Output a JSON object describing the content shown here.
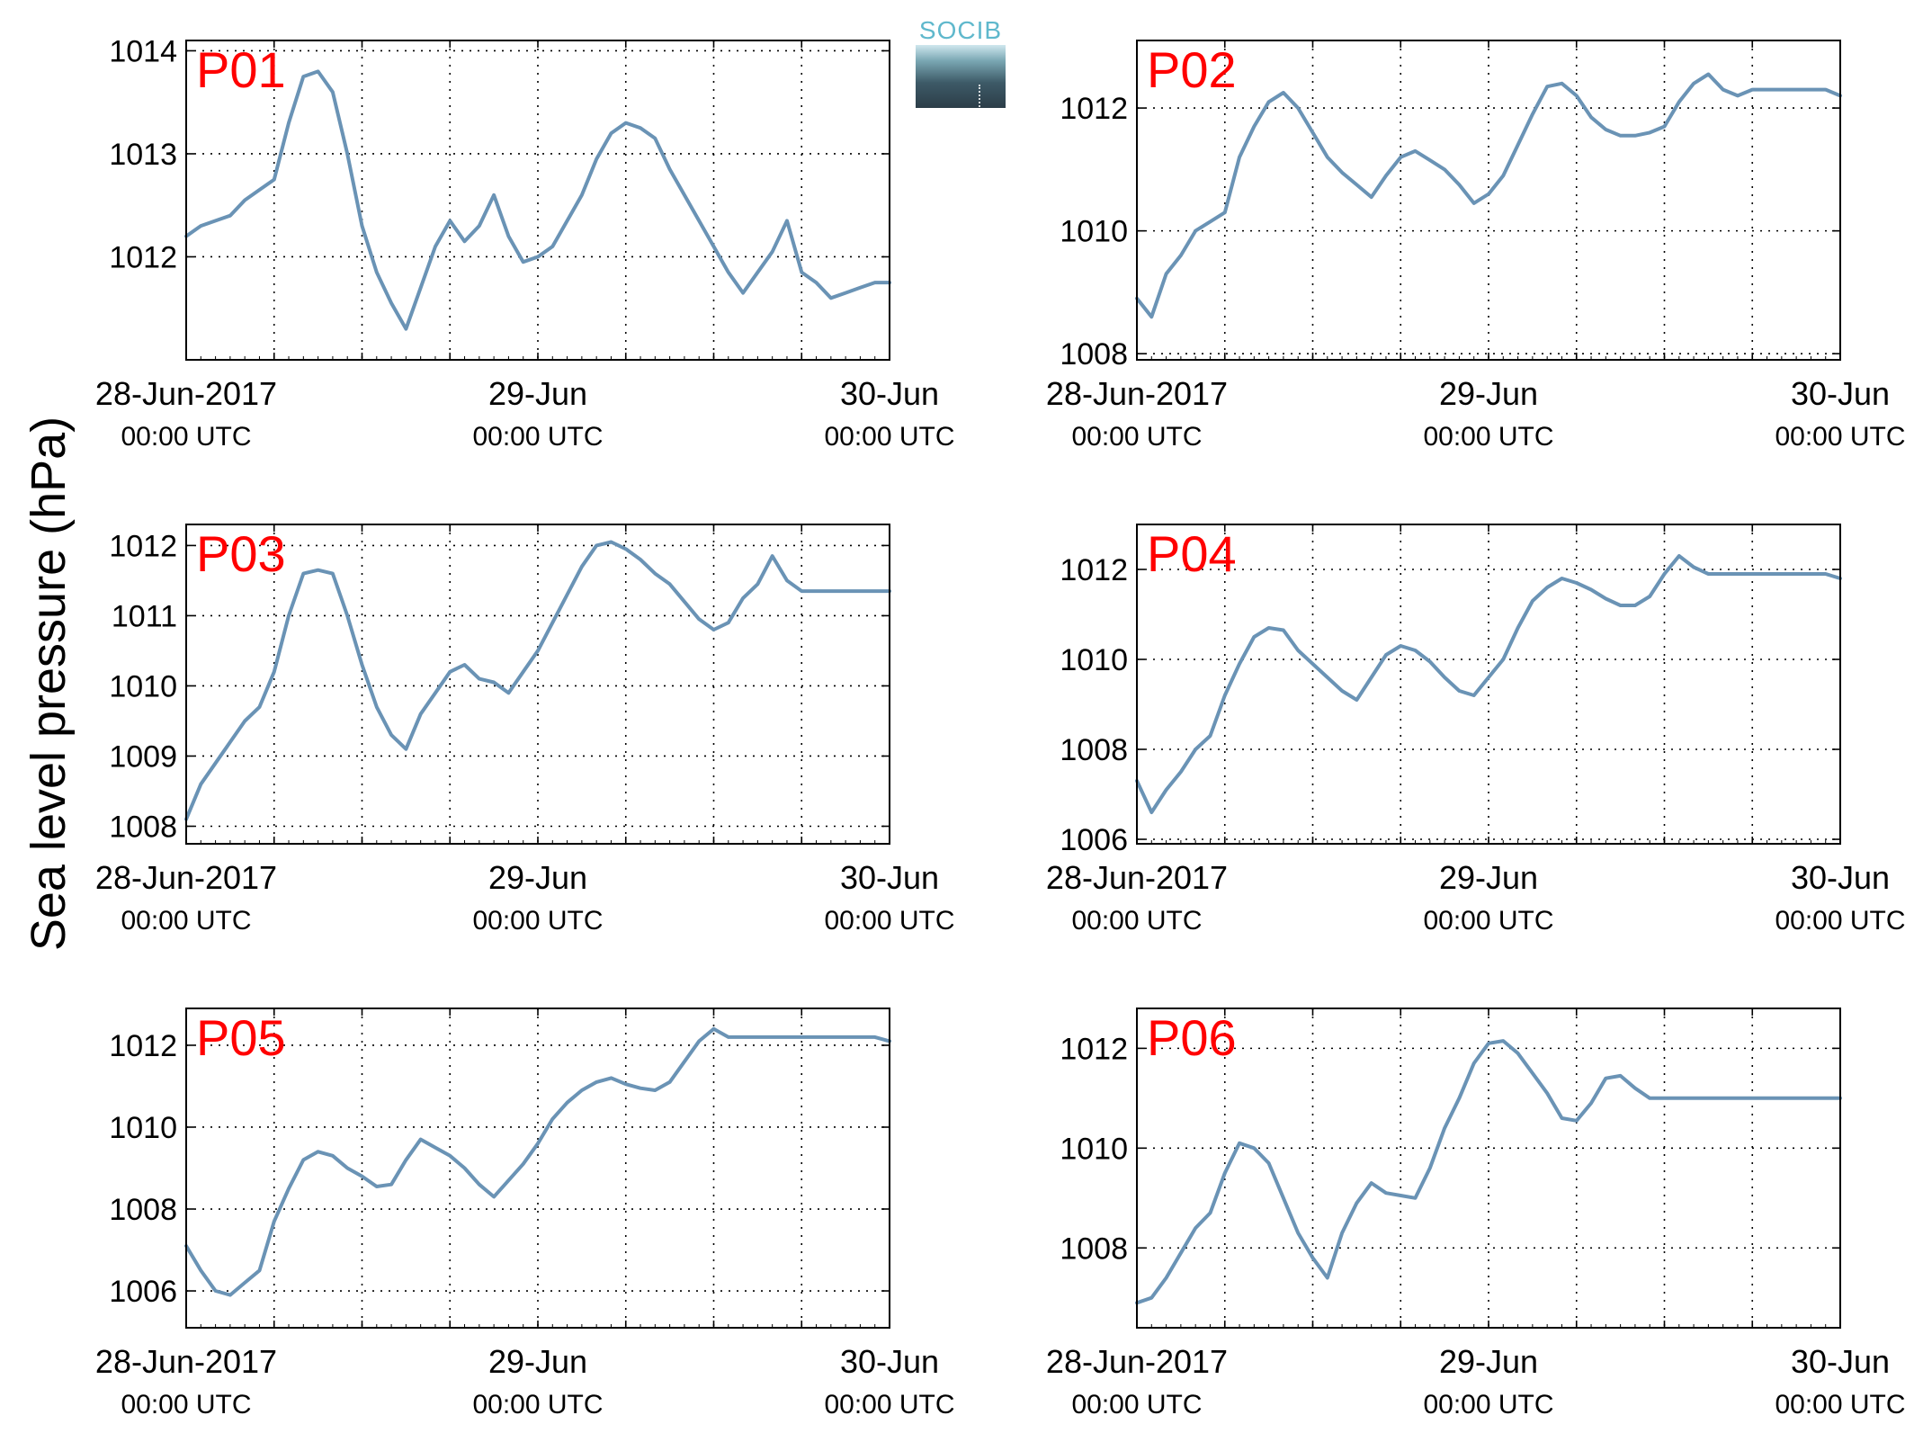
{
  "figure": {
    "ylabel": "Sea level pressure (hPa)",
    "logo_text": "SOCIB",
    "line_color": "#6a93b5",
    "label_color": "#ff0000"
  },
  "chart_data": [
    {
      "type": "line",
      "title": "P01",
      "ylim": [
        1011.0,
        1014.1
      ],
      "yticks": [
        1012,
        1013,
        1014
      ],
      "xlim": [
        0,
        48
      ],
      "xtick_labels": [
        {
          "x": 0,
          "line1": "28-Jun-2017",
          "line2": "00:00 UTC"
        },
        {
          "x": 24,
          "line1": "29-Jun",
          "line2": "00:00 UTC"
        },
        {
          "x": 48,
          "line1": "30-Jun",
          "line2": "00:00 UTC"
        }
      ],
      "grid": true,
      "series": [
        {
          "x": [
            0,
            1,
            2,
            3,
            4,
            5,
            6,
            7,
            8,
            9,
            10,
            11,
            12,
            13,
            14,
            15,
            16,
            17,
            18,
            19,
            20,
            21,
            22,
            23,
            24,
            25,
            26,
            27,
            28,
            29,
            30,
            31,
            32,
            33,
            34,
            35,
            36,
            37,
            38,
            39,
            40,
            41,
            42,
            43,
            44,
            45,
            46,
            47,
            48
          ],
          "values": [
            1012.2,
            1012.3,
            1012.35,
            1012.4,
            1012.55,
            1012.65,
            1012.75,
            1013.3,
            1013.75,
            1013.8,
            1013.6,
            1013.0,
            1012.3,
            1011.85,
            1011.55,
            1011.3,
            1011.7,
            1012.1,
            1012.35,
            1012.15,
            1012.3,
            1012.6,
            1012.2,
            1011.95,
            1012.0,
            1012.1,
            1012.35,
            1012.6,
            1012.95,
            1013.2,
            1013.3,
            1013.25,
            1013.15,
            1012.85,
            1012.6,
            1012.35,
            1012.1,
            1011.85,
            1011.65,
            1011.85,
            1012.05,
            1012.35,
            1011.85,
            1011.75,
            1011.6,
            1011.65,
            1011.7,
            1011.75,
            1011.75
          ]
        }
      ]
    },
    {
      "type": "line",
      "title": "P02",
      "ylim": [
        1007.9,
        1013.1
      ],
      "yticks": [
        1008,
        1010,
        1012
      ],
      "xlim": [
        0,
        48
      ],
      "xtick_labels": [
        {
          "x": 0,
          "line1": "28-Jun-2017",
          "line2": "00:00 UTC"
        },
        {
          "x": 24,
          "line1": "29-Jun",
          "line2": "00:00 UTC"
        },
        {
          "x": 48,
          "line1": "30-Jun",
          "line2": "00:00 UTC"
        }
      ],
      "grid": true,
      "series": [
        {
          "x": [
            0,
            1,
            2,
            3,
            4,
            5,
            6,
            7,
            8,
            9,
            10,
            11,
            12,
            13,
            14,
            15,
            16,
            17,
            18,
            19,
            20,
            21,
            22,
            23,
            24,
            25,
            26,
            27,
            28,
            29,
            30,
            31,
            32,
            33,
            34,
            35,
            36,
            37,
            38,
            39,
            40,
            41,
            42,
            43,
            44,
            45,
            46,
            47,
            48
          ],
          "values": [
            1008.9,
            1008.6,
            1009.3,
            1009.6,
            1010.0,
            1010.15,
            1010.3,
            1011.2,
            1011.7,
            1012.1,
            1012.25,
            1012.0,
            1011.6,
            1011.2,
            1010.95,
            1010.75,
            1010.55,
            1010.9,
            1011.2,
            1011.3,
            1011.15,
            1011.0,
            1010.75,
            1010.45,
            1010.6,
            1010.9,
            1011.4,
            1011.9,
            1012.35,
            1012.4,
            1012.2,
            1011.85,
            1011.65,
            1011.55,
            1011.55,
            1011.6,
            1011.7,
            1012.1,
            1012.4,
            1012.55,
            1012.3,
            1012.2,
            1012.3,
            1012.3,
            1012.3,
            1012.3,
            1012.3,
            1012.3,
            1012.2
          ]
        }
      ]
    },
    {
      "type": "line",
      "title": "P03",
      "ylim": [
        1007.75,
        1012.3
      ],
      "yticks": [
        1008,
        1009,
        1010,
        1011,
        1012
      ],
      "xlim": [
        0,
        48
      ],
      "xtick_labels": [
        {
          "x": 0,
          "line1": "28-Jun-2017",
          "line2": "00:00 UTC"
        },
        {
          "x": 24,
          "line1": "29-Jun",
          "line2": "00:00 UTC"
        },
        {
          "x": 48,
          "line1": "30-Jun",
          "line2": "00:00 UTC"
        }
      ],
      "grid": true,
      "series": [
        {
          "x": [
            0,
            1,
            2,
            3,
            4,
            5,
            6,
            7,
            8,
            9,
            10,
            11,
            12,
            13,
            14,
            15,
            16,
            17,
            18,
            19,
            20,
            21,
            22,
            23,
            24,
            25,
            26,
            27,
            28,
            29,
            30,
            31,
            32,
            33,
            34,
            35,
            36,
            37,
            38,
            39,
            40,
            41,
            42,
            43,
            44,
            45,
            46,
            47,
            48
          ],
          "values": [
            1008.1,
            1008.6,
            1008.9,
            1009.2,
            1009.5,
            1009.7,
            1010.2,
            1011.0,
            1011.6,
            1011.65,
            1011.6,
            1011.0,
            1010.3,
            1009.7,
            1009.3,
            1009.1,
            1009.6,
            1009.9,
            1010.2,
            1010.3,
            1010.1,
            1010.05,
            1009.9,
            1010.2,
            1010.5,
            1010.9,
            1011.3,
            1011.7,
            1012.0,
            1012.05,
            1011.95,
            1011.8,
            1011.6,
            1011.45,
            1011.2,
            1010.95,
            1010.8,
            1010.9,
            1011.25,
            1011.45,
            1011.85,
            1011.5,
            1011.35,
            1011.35,
            1011.35,
            1011.35,
            1011.35,
            1011.35,
            1011.35
          ]
        }
      ]
    },
    {
      "type": "line",
      "title": "P04",
      "ylim": [
        1005.9,
        1013.0
      ],
      "yticks": [
        1006,
        1008,
        1010,
        1012
      ],
      "xlim": [
        0,
        48
      ],
      "xtick_labels": [
        {
          "x": 0,
          "line1": "28-Jun-2017",
          "line2": "00:00 UTC"
        },
        {
          "x": 24,
          "line1": "29-Jun",
          "line2": "00:00 UTC"
        },
        {
          "x": 48,
          "line1": "30-Jun",
          "line2": "00:00 UTC"
        }
      ],
      "grid": true,
      "series": [
        {
          "x": [
            0,
            1,
            2,
            3,
            4,
            5,
            6,
            7,
            8,
            9,
            10,
            11,
            12,
            13,
            14,
            15,
            16,
            17,
            18,
            19,
            20,
            21,
            22,
            23,
            24,
            25,
            26,
            27,
            28,
            29,
            30,
            31,
            32,
            33,
            34,
            35,
            36,
            37,
            38,
            39,
            40,
            41,
            42,
            43,
            44,
            45,
            46,
            47,
            48
          ],
          "values": [
            1007.3,
            1006.6,
            1007.1,
            1007.5,
            1008.0,
            1008.3,
            1009.2,
            1009.9,
            1010.5,
            1010.7,
            1010.65,
            1010.2,
            1009.9,
            1009.6,
            1009.3,
            1009.1,
            1009.6,
            1010.1,
            1010.3,
            1010.2,
            1009.95,
            1009.6,
            1009.3,
            1009.2,
            1009.6,
            1010.0,
            1010.7,
            1011.3,
            1011.6,
            1011.8,
            1011.7,
            1011.55,
            1011.35,
            1011.2,
            1011.2,
            1011.4,
            1011.9,
            1012.3,
            1012.05,
            1011.9,
            1011.9,
            1011.9,
            1011.9,
            1011.9,
            1011.9,
            1011.9,
            1011.9,
            1011.9,
            1011.8
          ]
        }
      ]
    },
    {
      "type": "line",
      "title": "P05",
      "ylim": [
        1005.1,
        1012.9
      ],
      "yticks": [
        1006,
        1008,
        1010,
        1012
      ],
      "xlim": [
        0,
        48
      ],
      "xtick_labels": [
        {
          "x": 0,
          "line1": "28-Jun-2017",
          "line2": "00:00 UTC"
        },
        {
          "x": 24,
          "line1": "29-Jun",
          "line2": "00:00 UTC"
        },
        {
          "x": 48,
          "line1": "30-Jun",
          "line2": "00:00 UTC"
        }
      ],
      "grid": true,
      "series": [
        {
          "x": [
            0,
            1,
            2,
            3,
            4,
            5,
            6,
            7,
            8,
            9,
            10,
            11,
            12,
            13,
            14,
            15,
            16,
            17,
            18,
            19,
            20,
            21,
            22,
            23,
            24,
            25,
            26,
            27,
            28,
            29,
            30,
            31,
            32,
            33,
            34,
            35,
            36,
            37,
            38,
            39,
            40,
            41,
            42,
            43,
            44,
            45,
            46,
            47,
            48
          ],
          "values": [
            1007.1,
            1006.5,
            1006.0,
            1005.9,
            1006.2,
            1006.5,
            1007.7,
            1008.5,
            1009.2,
            1009.4,
            1009.3,
            1009.0,
            1008.8,
            1008.55,
            1008.6,
            1009.2,
            1009.7,
            1009.5,
            1009.3,
            1009.0,
            1008.6,
            1008.3,
            1008.7,
            1009.1,
            1009.6,
            1010.2,
            1010.6,
            1010.9,
            1011.1,
            1011.2,
            1011.05,
            1010.95,
            1010.9,
            1011.1,
            1011.6,
            1012.1,
            1012.4,
            1012.2,
            1012.2,
            1012.2,
            1012.2,
            1012.2,
            1012.2,
            1012.2,
            1012.2,
            1012.2,
            1012.2,
            1012.2,
            1012.1
          ]
        }
      ]
    },
    {
      "type": "line",
      "title": "P06",
      "ylim": [
        1006.4,
        1012.8
      ],
      "yticks": [
        1008,
        1010,
        1012
      ],
      "xlim": [
        0,
        48
      ],
      "xtick_labels": [
        {
          "x": 0,
          "line1": "28-Jun-2017",
          "line2": "00:00 UTC"
        },
        {
          "x": 24,
          "line1": "29-Jun",
          "line2": "00:00 UTC"
        },
        {
          "x": 48,
          "line1": "30-Jun",
          "line2": "00:00 UTC"
        }
      ],
      "grid": true,
      "series": [
        {
          "x": [
            0,
            1,
            2,
            3,
            4,
            5,
            6,
            7,
            8,
            9,
            10,
            11,
            12,
            13,
            14,
            15,
            16,
            17,
            18,
            19,
            20,
            21,
            22,
            23,
            24,
            25,
            26,
            27,
            28,
            29,
            30,
            31,
            32,
            33,
            34,
            35,
            36,
            37,
            38,
            39,
            40,
            41,
            42,
            43,
            44,
            45,
            46,
            47,
            48
          ],
          "values": [
            1006.9,
            1007.0,
            1007.4,
            1007.9,
            1008.4,
            1008.7,
            1009.5,
            1010.1,
            1010.0,
            1009.7,
            1009.0,
            1008.3,
            1007.8,
            1007.4,
            1008.3,
            1008.9,
            1009.3,
            1009.1,
            1009.05,
            1009.0,
            1009.6,
            1010.4,
            1011.0,
            1011.7,
            1012.1,
            1012.15,
            1011.9,
            1011.5,
            1011.1,
            1010.6,
            1010.55,
            1010.9,
            1011.4,
            1011.45,
            1011.2,
            1011.0,
            1011.0,
            1011.0,
            1011.0,
            1011.0,
            1011.0,
            1011.0,
            1011.0,
            1011.0,
            1011.0,
            1011.0,
            1011.0,
            1011.0,
            1011.0
          ]
        }
      ]
    }
  ]
}
